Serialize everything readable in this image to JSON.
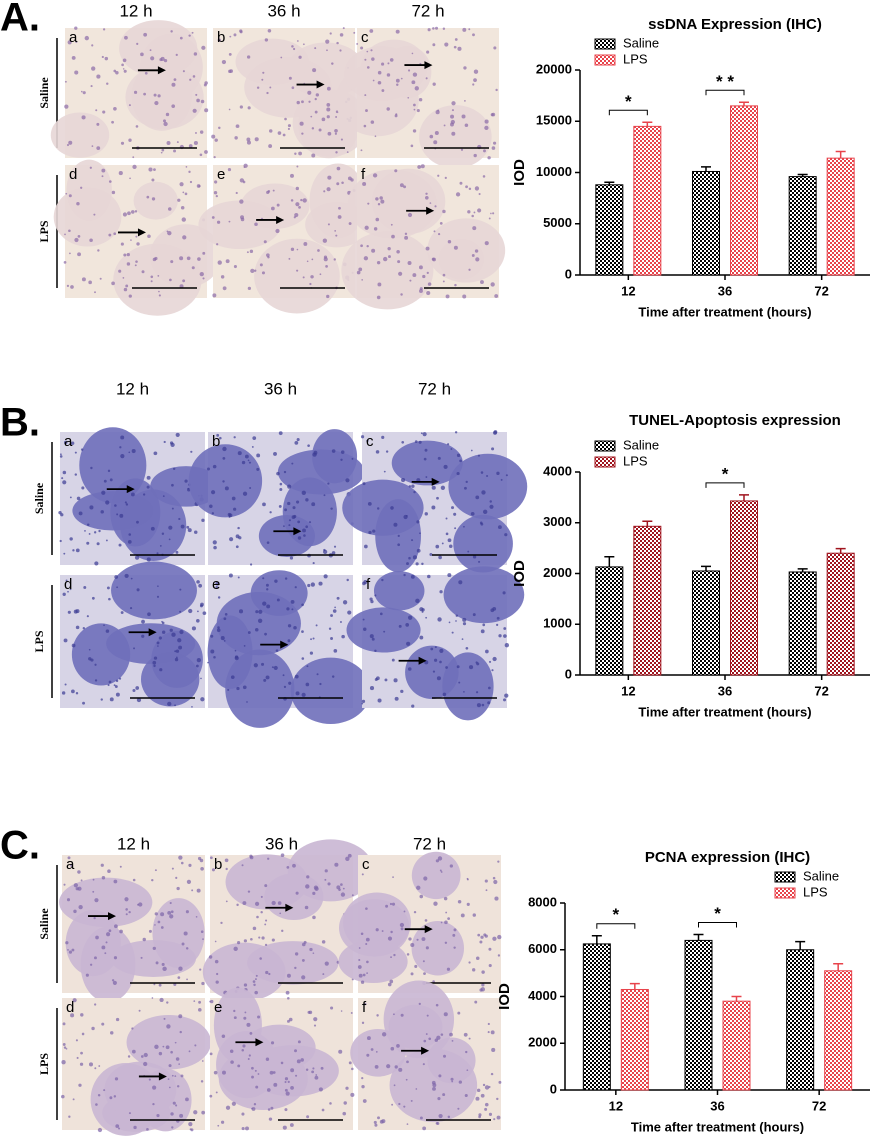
{
  "panels": [
    {
      "label": "A.",
      "columns": [
        "12 h",
        "36 h",
        "72 h"
      ],
      "rows": [
        "Saline",
        "LPS"
      ],
      "images": [
        "a",
        "b",
        "c",
        "d",
        "e",
        "f"
      ]
    },
    {
      "label": "B.",
      "columns": [
        "12 h",
        "36 h",
        "72 h"
      ],
      "rows": [
        "Saline",
        "LPS"
      ],
      "images": [
        "a",
        "b",
        "c",
        "d",
        "e",
        "f"
      ]
    },
    {
      "label": "C.",
      "columns": [
        "12 h",
        "36 h",
        "72 h"
      ],
      "rows": [
        "Saline",
        "LPS"
      ],
      "images": [
        "a",
        "b",
        "c",
        "d",
        "e",
        "f"
      ]
    }
  ],
  "chart_data": [
    {
      "type": "bar",
      "title": "ssDNA Expression (IHC)",
      "x_label": "Time after treatment (hours)",
      "y_label": "IOD",
      "categories": [
        "12",
        "36",
        "72"
      ],
      "series": [
        {
          "name": "Saline",
          "color": "#000000",
          "values": [
            8800,
            10100,
            9600
          ],
          "errors": [
            250,
            450,
            200
          ]
        },
        {
          "name": "LPS",
          "color": "#e8434b",
          "values": [
            14500,
            16500,
            11400
          ],
          "errors": [
            400,
            350,
            650
          ]
        }
      ],
      "ylim": [
        0,
        20000
      ],
      "yticks": [
        0,
        5000,
        10000,
        15000,
        20000
      ],
      "legend": "upper left",
      "annotations": [
        {
          "text": "*",
          "x": "12"
        },
        {
          "text": "* *",
          "x": "36"
        }
      ]
    },
    {
      "type": "bar",
      "title": "TUNEL-Apoptosis expression",
      "x_label": "Time after treatment (hours)",
      "y_label": "IOD",
      "categories": [
        "12",
        "36",
        "72"
      ],
      "series": [
        {
          "name": "Saline",
          "color": "#000000",
          "values": [
            2130,
            2050,
            2030
          ],
          "errors": [
            200,
            90,
            60
          ]
        },
        {
          "name": "LPS",
          "color": "#a0141e",
          "values": [
            2930,
            3430,
            2400
          ],
          "errors": [
            100,
            120,
            90
          ]
        }
      ],
      "ylim": [
        0,
        4000
      ],
      "yticks": [
        0,
        1000,
        2000,
        3000,
        4000
      ],
      "legend": "upper left",
      "annotations": [
        {
          "text": "*",
          "x": "36"
        }
      ]
    },
    {
      "type": "bar",
      "title": "PCNA expression (IHC)",
      "x_label": "Time after treatment (hours)",
      "y_label": "IOD",
      "categories": [
        "12",
        "36",
        "72"
      ],
      "series": [
        {
          "name": "Saline",
          "color": "#000000",
          "values": [
            6250,
            6400,
            6000
          ],
          "errors": [
            350,
            250,
            350
          ]
        },
        {
          "name": "LPS",
          "color": "#e8434b",
          "values": [
            4300,
            3800,
            5100
          ],
          "errors": [
            250,
            200,
            300
          ]
        }
      ],
      "ylim": [
        0,
        8000
      ],
      "yticks": [
        0,
        2000,
        4000,
        6000,
        8000
      ],
      "legend": "upper right",
      "annotations": [
        {
          "text": "*",
          "x": "12"
        },
        {
          "text": "*",
          "x": "36"
        }
      ]
    }
  ]
}
